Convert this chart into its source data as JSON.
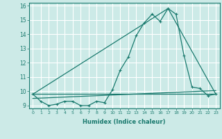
{
  "xlabel": "Humidex (Indice chaleur)",
  "ylabel": "",
  "bg_color": "#cceae7",
  "grid_color": "#ffffff",
  "line_color": "#1a7a6e",
  "xlim": [
    -0.5,
    23.5
  ],
  "ylim": [
    8.8,
    16.2
  ],
  "yticks": [
    9,
    10,
    11,
    12,
    13,
    14,
    15,
    16
  ],
  "xticks": [
    0,
    1,
    2,
    3,
    4,
    5,
    6,
    7,
    8,
    9,
    10,
    11,
    12,
    13,
    14,
    15,
    16,
    17,
    18,
    19,
    20,
    21,
    22,
    23
  ],
  "main_y": [
    9.8,
    9.3,
    9.0,
    9.1,
    9.3,
    9.3,
    9.0,
    9.0,
    9.3,
    9.2,
    10.1,
    11.5,
    12.4,
    13.9,
    14.8,
    15.4,
    14.9,
    15.8,
    15.4,
    12.5,
    10.3,
    10.2,
    9.7,
    9.8
  ],
  "line2_x": [
    0,
    23
  ],
  "line2_y": [
    9.8,
    9.8
  ],
  "line3_x": [
    0,
    17,
    23
  ],
  "line3_y": [
    9.8,
    15.8,
    9.8
  ],
  "line4_x": [
    0,
    23
  ],
  "line4_y": [
    9.5,
    10.05
  ]
}
